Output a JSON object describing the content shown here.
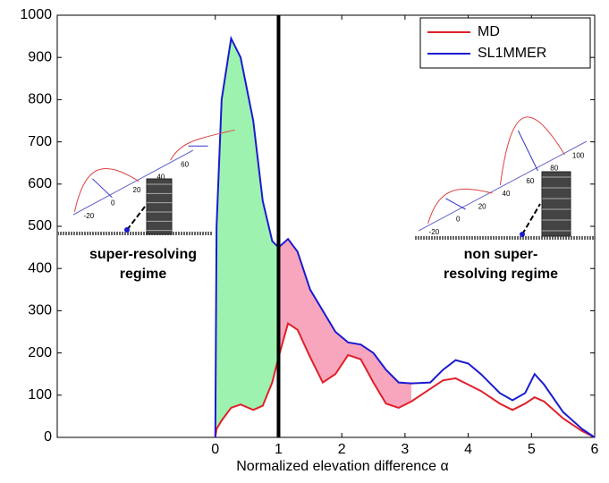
{
  "chart_data": {
    "type": "line",
    "x_label": "Normalized elevation difference α",
    "xlim": [
      -2.5,
      6
    ],
    "ylim": [
      0,
      1000
    ],
    "xticks": [
      0,
      1,
      2,
      3,
      4,
      5,
      6
    ],
    "yticks": [
      0,
      100,
      200,
      300,
      400,
      500,
      600,
      700,
      800,
      900,
      1000
    ],
    "threshold": 1,
    "legend": "upper right",
    "x": [
      0,
      0.02,
      0.1,
      0.25,
      0.4,
      0.6,
      0.75,
      0.9,
      1.0,
      1.15,
      1.3,
      1.5,
      1.7,
      1.9,
      2.1,
      2.3,
      2.5,
      2.7,
      2.9,
      3.1,
      3.4,
      3.6,
      3.8,
      4.0,
      4.2,
      4.5,
      4.7,
      4.9,
      5.05,
      5.2,
      5.5,
      5.8,
      6
    ],
    "series": [
      {
        "name": "MD",
        "color": "#e0202a",
        "values": [
          0,
          20,
          40,
          70,
          78,
          65,
          75,
          130,
          190,
          270,
          255,
          190,
          130,
          150,
          195,
          185,
          130,
          80,
          70,
          85,
          115,
          135,
          140,
          125,
          110,
          80,
          65,
          80,
          95,
          85,
          45,
          15,
          0
        ]
      },
      {
        "name": "SL1MMER",
        "color": "#1a1ad0",
        "values": [
          0,
          500,
          800,
          945,
          900,
          750,
          560,
          465,
          450,
          470,
          440,
          350,
          300,
          250,
          225,
          220,
          200,
          160,
          130,
          128,
          130,
          160,
          183,
          175,
          150,
          105,
          88,
          105,
          150,
          125,
          60,
          20,
          0
        ]
      }
    ],
    "shaded_regions": [
      {
        "from": 0,
        "to": 1,
        "color": "#9ef2b0"
      },
      {
        "from": 1,
        "to": 3.1,
        "color": "#f7a6bd"
      }
    ],
    "annotations": [
      {
        "lines": [
          "super-resolving",
          "regime"
        ]
      },
      {
        "lines": [
          "non super-",
          "resolving regime"
        ]
      }
    ],
    "insets": [
      {
        "ticks": [
          "-20",
          "0",
          "20",
          "40",
          "60"
        ]
      },
      {
        "ticks": [
          "-20",
          "0",
          "20",
          "40",
          "60",
          "80",
          "100"
        ]
      }
    ]
  }
}
